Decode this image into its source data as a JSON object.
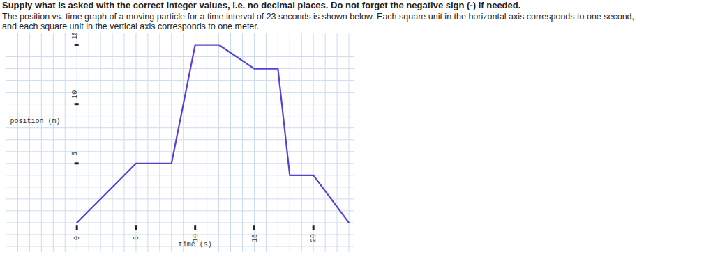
{
  "chart_data": {
    "type": "line",
    "title": "Supply what is asked with the correct integer values, i.e. no decimal places. Do not forget the negative sign (-) if needed.",
    "subtitle": "The position vs. time graph of a moving particle for a time interval of 23 seconds is shown below. Each square unit in the horizontal axis corresponds to one second, and each square unit in the vertical axis corresponds to one meter.",
    "x_label": "time (s)",
    "y_label": "position (m)",
    "x": [
      0,
      5,
      8,
      10,
      12,
      15,
      17,
      18,
      20,
      23
    ],
    "values": [
      0,
      5,
      5,
      15,
      15,
      13,
      13,
      4,
      4,
      0
    ],
    "color": "#5b3fd4",
    "xlim": [
      -6,
      23.5
    ],
    "ylim": [
      -2.5,
      16
    ],
    "xticks": [
      0,
      5,
      10,
      15,
      20
    ],
    "yticks": [
      5,
      10,
      15
    ],
    "grid": true
  }
}
